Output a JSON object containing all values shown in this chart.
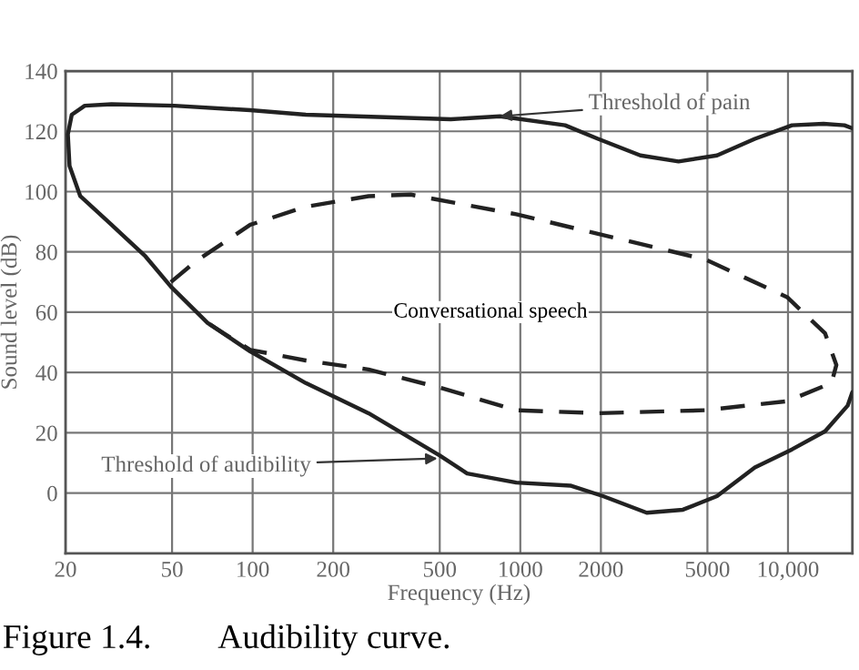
{
  "chart_data": {
    "type": "line",
    "xlabel": "Frequency (Hz)",
    "ylabel": "Sound level (dB)",
    "xlim": [
      20,
      17400
    ],
    "ylim": [
      -20,
      140
    ],
    "xticks": [
      20,
      50,
      100,
      200,
      500,
      1000,
      2000,
      5000,
      {
        "value": 10000,
        "label": "10,000"
      }
    ],
    "yticks": [
      0,
      20,
      40,
      60,
      80,
      100,
      120,
      140
    ],
    "grid": true,
    "marker": "none",
    "log": "x",
    "series": [
      {
        "color": "#222222",
        "line_style": "solid",
        "x": [
          17400,
          16250,
          13570,
          10350,
          7520,
          5430,
          3900,
          2810,
          1950,
          1470,
          840,
          550,
          158,
          98,
          51,
          29.7,
          23.6,
          21.1,
          20.4,
          20.7,
          22.7,
          29.7,
          39.8,
          49.5,
          67.8,
          98,
          158,
          271,
          500,
          633,
          966,
          1537,
          2037,
          2966,
          4050,
          5430,
          7520,
          10350,
          13760,
          16700,
          17400
        ],
        "values": [
          121,
          122,
          122.5,
          122,
          117.5,
          112,
          110,
          112,
          117.5,
          122,
          125,
          124,
          125.5,
          127,
          128.5,
          129,
          128.5,
          125.5,
          119,
          108.5,
          98.5,
          89,
          78.5,
          68.5,
          56.5,
          47,
          36.5,
          26.5,
          12.5,
          6.5,
          3.5,
          2.5,
          -1,
          -6.5,
          -5.5,
          -1,
          8.5,
          14.5,
          20.5,
          29,
          33.5
        ]
      },
      {
        "color": "#222222",
        "line_style": "dashed",
        "x": [
          49.5,
          61.6,
          98,
          158,
          271,
          390,
          966,
          1950,
          4910,
          9930,
          13760,
          15160,
          14540,
          9930,
          4910,
          1950,
          966,
          500,
          271,
          158,
          98,
          77.9,
          67.8
        ],
        "values": [
          70,
          77,
          89,
          95,
          98.5,
          99,
          92.5,
          86,
          77.5,
          65,
          53,
          42.5,
          36.5,
          30.5,
          27.5,
          26.5,
          27.5,
          35,
          41,
          44,
          47.5,
          53,
          56.5
        ]
      }
    ],
    "annotations": [
      {
        "text": "Threshold of pain",
        "x": 840,
        "y": 125
      },
      {
        "text": "Threshold of audibility",
        "x": 490,
        "y": 11.5
      },
      "Conversational speech",
      "Figure 1.4.        Audibility curve."
    ]
  }
}
